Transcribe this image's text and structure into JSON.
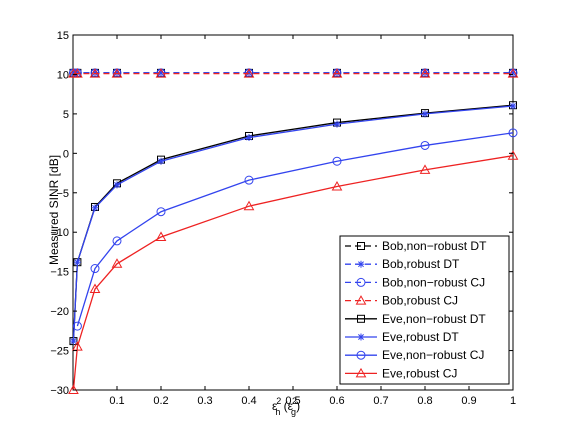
{
  "chart_data": {
    "type": "line",
    "xlabel": "ε_h² (ε_g²)",
    "xlabel_parts": {
      "base1": "ε",
      "sub1": "h",
      "sup1": "2",
      "open": " (",
      "base2": "ε",
      "sub2": "g",
      "sup2": "2",
      "close": ")"
    },
    "ylabel": "Measured SINR [dB]",
    "xlim": [
      0,
      1
    ],
    "ylim": [
      -30,
      15
    ],
    "xticks": [
      0.1,
      0.2,
      0.3,
      0.4,
      0.5,
      0.6,
      0.7,
      0.8,
      0.9,
      1
    ],
    "xtick_labels": [
      "0.1",
      "0.2",
      "0.3",
      "0.4",
      "0.5",
      "0.6",
      "0.7",
      "0.8",
      "0.9",
      "1"
    ],
    "yticks": [
      -30,
      -25,
      -20,
      -15,
      -10,
      -5,
      0,
      5,
      10,
      15
    ],
    "ytick_labels": [
      "−30",
      "−25",
      "−20",
      "−15",
      "−10",
      "−5",
      "0",
      "5",
      "10",
      "15"
    ],
    "grid": false,
    "legend_position": "lower-right",
    "series": [
      {
        "name": "Bob,non−robust DT",
        "color": "#000000",
        "dash": true,
        "marker": "square",
        "x": [
          0.001,
          0.01,
          0.05,
          0.1,
          0.2,
          0.4,
          0.6,
          0.8,
          1.0
        ],
        "y": [
          10.2,
          10.2,
          10.2,
          10.2,
          10.2,
          10.2,
          10.2,
          10.2,
          10.2
        ]
      },
      {
        "name": "Bob,robust DT",
        "color": "#3344ee",
        "dash": true,
        "marker": "asterisk",
        "x": [
          0.001,
          0.01,
          0.05,
          0.1,
          0.2,
          0.4,
          0.6,
          0.8,
          1.0
        ],
        "y": [
          10.2,
          10.2,
          10.2,
          10.2,
          10.2,
          10.2,
          10.2,
          10.2,
          10.2
        ]
      },
      {
        "name": "Bob,non−robust CJ",
        "color": "#3344ee",
        "dash": true,
        "marker": "circle",
        "x": [
          0.001,
          0.01,
          0.05,
          0.1,
          0.2,
          0.4,
          0.6,
          0.8,
          1.0
        ],
        "y": [
          10.2,
          10.2,
          10.2,
          10.2,
          10.2,
          10.2,
          10.2,
          10.2,
          10.2
        ]
      },
      {
        "name": "Bob,robust CJ",
        "color": "#ee2222",
        "dash": true,
        "marker": "triangle",
        "x": [
          0.001,
          0.01,
          0.05,
          0.1,
          0.2,
          0.4,
          0.6,
          0.8,
          1.0
        ],
        "y": [
          10.1,
          10.1,
          10.1,
          10.1,
          10.1,
          10.1,
          10.1,
          10.1,
          10.1
        ]
      },
      {
        "name": "Eve,non−robust DT",
        "color": "#000000",
        "dash": false,
        "marker": "square",
        "x": [
          0.001,
          0.01,
          0.05,
          0.1,
          0.2,
          0.4,
          0.6,
          0.8,
          1.0
        ],
        "y": [
          -23.8,
          -13.8,
          -6.8,
          -3.8,
          -0.8,
          2.2,
          3.9,
          5.1,
          6.1
        ]
      },
      {
        "name": "Eve,robust DT",
        "color": "#3344ee",
        "dash": false,
        "marker": "asterisk",
        "x": [
          0.001,
          0.01,
          0.05,
          0.1,
          0.2,
          0.4,
          0.6,
          0.8,
          1.0
        ],
        "y": [
          -23.8,
          -13.8,
          -6.9,
          -4.0,
          -1.0,
          2.0,
          3.7,
          5.0,
          6.0
        ]
      },
      {
        "name": "Eve,non−robust CJ",
        "color": "#3344ee",
        "dash": false,
        "marker": "circle",
        "x": [
          0.01,
          0.05,
          0.1,
          0.2,
          0.4,
          0.6,
          0.8,
          1.0
        ],
        "y": [
          -21.9,
          -14.6,
          -11.1,
          -7.4,
          -3.4,
          -1.0,
          1.0,
          2.6
        ]
      },
      {
        "name": "Eve,robust CJ",
        "color": "#ee2222",
        "dash": false,
        "marker": "triangle",
        "x": [
          0.001,
          0.01,
          0.05,
          0.1,
          0.2,
          0.4,
          0.6,
          0.8,
          1.0
        ],
        "y": [
          -30.0,
          -24.5,
          -17.2,
          -14.0,
          -10.6,
          -6.7,
          -4.2,
          -2.1,
          -0.3
        ]
      }
    ]
  }
}
